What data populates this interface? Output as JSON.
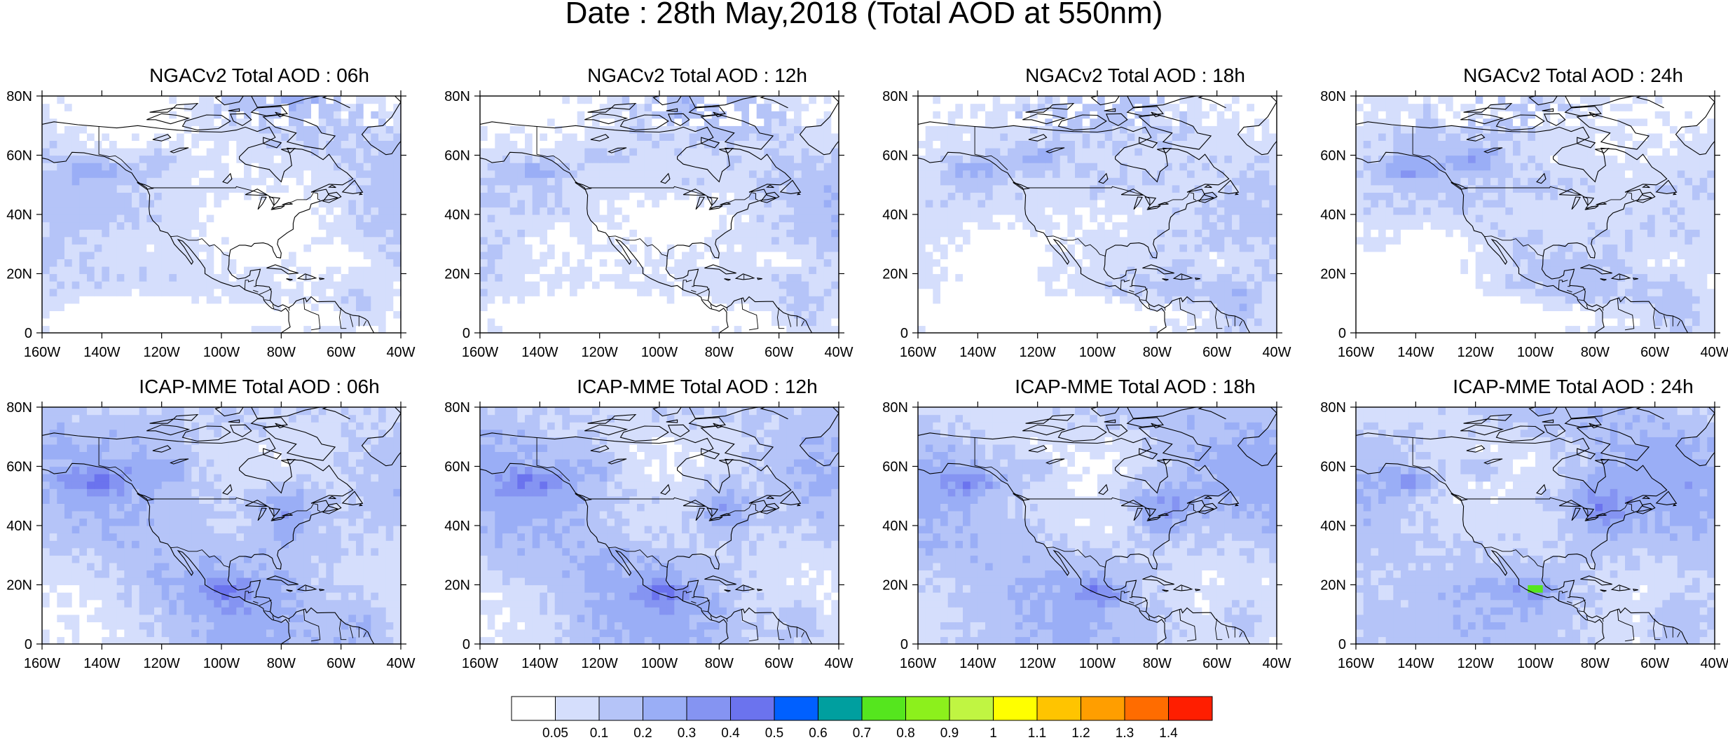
{
  "title": "Date : 28th May,2018 (Total AOD at 550nm)",
  "map": {
    "lon_range": [
      -160,
      -40
    ],
    "lat_range": [
      0,
      80
    ],
    "x_ticks": [
      "160W",
      "140W",
      "120W",
      "100W",
      "80W",
      "60W",
      "40W"
    ],
    "y_ticks": [
      "0",
      "20N",
      "40N",
      "60N",
      "80N"
    ],
    "projection": "cylindrical equidistant"
  },
  "panels": [
    {
      "title": "NGACv2 Total AOD : 06h",
      "model": "NGACv2",
      "forecast_hour": "06h"
    },
    {
      "title": "NGACv2 Total AOD : 12h",
      "model": "NGACv2",
      "forecast_hour": "12h"
    },
    {
      "title": "NGACv2 Total AOD : 18h",
      "model": "NGACv2",
      "forecast_hour": "18h"
    },
    {
      "title": "NGACv2 Total AOD : 24h",
      "model": "NGACv2",
      "forecast_hour": "24h"
    },
    {
      "title": "ICAP-MME Total AOD : 06h",
      "model": "ICAP-MME",
      "forecast_hour": "06h"
    },
    {
      "title": "ICAP-MME Total AOD : 12h",
      "model": "ICAP-MME",
      "forecast_hour": "12h"
    },
    {
      "title": "ICAP-MME Total AOD : 18h",
      "model": "ICAP-MME",
      "forecast_hour": "18h"
    },
    {
      "title": "ICAP-MME Total AOD : 24h",
      "model": "ICAP-MME",
      "forecast_hour": "24h"
    }
  ],
  "colorbar": {
    "labels": [
      "0.05",
      "0.1",
      "0.2",
      "0.3",
      "0.4",
      "0.5",
      "0.6",
      "0.7",
      "0.8",
      "0.9",
      "1",
      "1.1",
      "1.2",
      "1.3",
      "1.4"
    ],
    "colors": [
      "#ffffff",
      "#d5defc",
      "#b5c4f8",
      "#9aaef6",
      "#8594f2",
      "#6b73ee",
      "#0060ff",
      "#009f9f",
      "#55e61e",
      "#8cf01c",
      "#c0f542",
      "#ffff00",
      "#ffc400",
      "#ff9e00",
      "#ff6c00",
      "#ff1e00"
    ]
  }
}
